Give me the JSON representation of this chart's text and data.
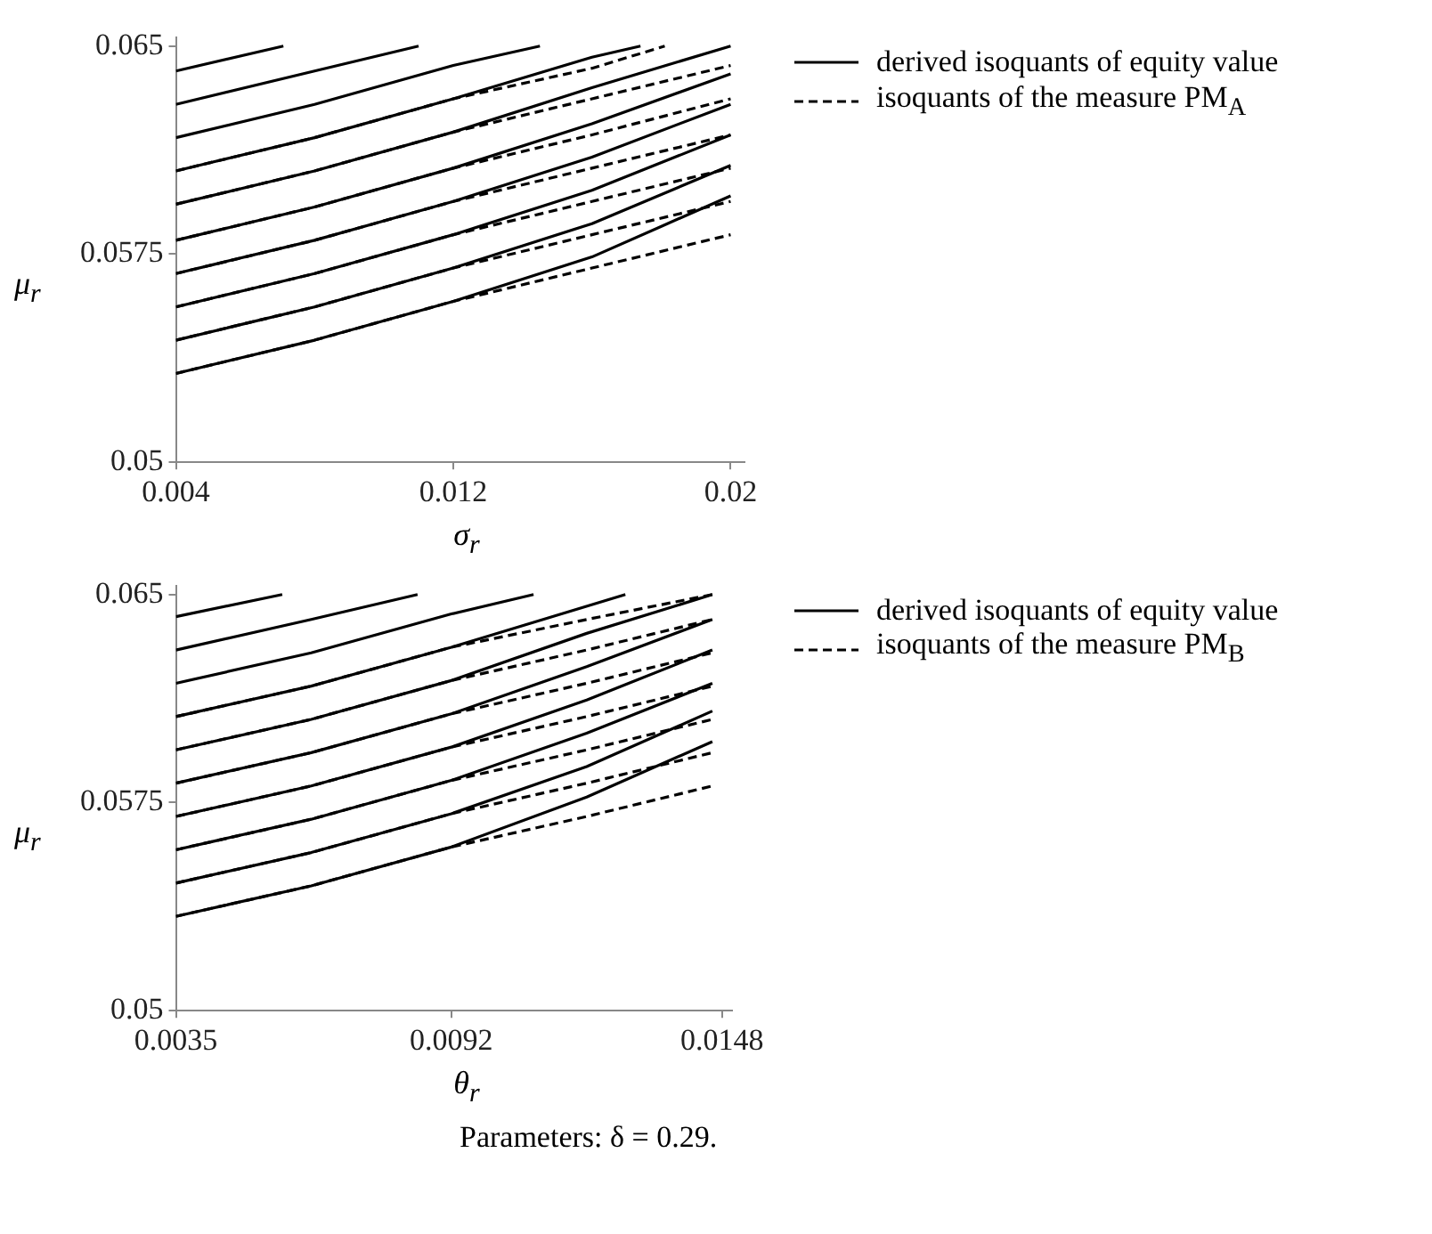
{
  "chart_data": [
    {
      "type": "line",
      "xlabel": "σ$_{r}$",
      "ylabel": "μ$_{r}$",
      "legend": "right",
      "xlim": [
        0.004,
        0.0204
      ],
      "xticks": [
        0.004,
        0.012,
        0.02
      ],
      "ylim": [
        0.05,
        0.0653
      ],
      "yticks": [
        0.05,
        0.0575,
        0.065
      ],
      "series": [
        {
          "name": "derived isoquants of equity value",
          "color": "#000000",
          "line_style": "solid",
          "x": [
            0.004,
            0.0071
          ],
          "values": [
            0.0641,
            0.065
          ]
        },
        {
          "color": "#000000",
          "line_style": "solid",
          "x": [
            0.004,
            0.008,
            0.011
          ],
          "values": [
            0.0629,
            0.0641,
            0.065
          ]
        },
        {
          "color": "#000000",
          "line_style": "solid",
          "x": [
            0.004,
            0.008,
            0.012,
            0.0145
          ],
          "values": [
            0.0617,
            0.0629,
            0.0643,
            0.065
          ]
        },
        {
          "color": "#000000",
          "line_style": "solid",
          "x": [
            0.004,
            0.008,
            0.012,
            0.016,
            0.0174
          ],
          "values": [
            0.0605,
            0.0617,
            0.0631,
            0.0646,
            0.065
          ]
        },
        {
          "color": "#000000",
          "line_style": "solid",
          "x": [
            0.004,
            0.008,
            0.012,
            0.016,
            0.02
          ],
          "values": [
            0.0593,
            0.0605,
            0.0619,
            0.0635,
            0.065
          ]
        },
        {
          "color": "#000000",
          "line_style": "solid",
          "x": [
            0.004,
            0.008,
            0.012,
            0.016,
            0.02
          ],
          "values": [
            0.058,
            0.0592,
            0.0606,
            0.0622,
            0.064
          ]
        },
        {
          "color": "#000000",
          "line_style": "solid",
          "x": [
            0.004,
            0.008,
            0.012,
            0.016,
            0.02
          ],
          "values": [
            0.0568,
            0.058,
            0.0594,
            0.061,
            0.0629
          ]
        },
        {
          "color": "#000000",
          "line_style": "solid",
          "x": [
            0.004,
            0.008,
            0.012,
            0.016,
            0.02
          ],
          "values": [
            0.0556,
            0.0568,
            0.0582,
            0.0598,
            0.0618
          ]
        },
        {
          "color": "#000000",
          "line_style": "solid",
          "x": [
            0.004,
            0.008,
            0.012,
            0.016,
            0.02
          ],
          "values": [
            0.0544,
            0.0556,
            0.057,
            0.0586,
            0.0607
          ]
        },
        {
          "color": "#000000",
          "line_style": "solid",
          "x": [
            0.004,
            0.008,
            0.012,
            0.016,
            0.02
          ],
          "values": [
            0.0532,
            0.0544,
            0.0558,
            0.0574,
            0.0596
          ]
        },
        {
          "name": "isoquants of the measure PM$_{A}$",
          "color": "#000000",
          "line_style": "dashed",
          "x": [
            0.004,
            0.008,
            0.012,
            0.016,
            0.0181
          ],
          "values": [
            0.0605,
            0.0617,
            0.0631,
            0.0642,
            0.065
          ]
        },
        {
          "color": "#000000",
          "line_style": "dashed",
          "x": [
            0.004,
            0.008,
            0.012,
            0.016,
            0.02
          ],
          "values": [
            0.0593,
            0.0605,
            0.0619,
            0.0631,
            0.0643
          ]
        },
        {
          "color": "#000000",
          "line_style": "dashed",
          "x": [
            0.004,
            0.008,
            0.012,
            0.016,
            0.02
          ],
          "values": [
            0.058,
            0.0592,
            0.0606,
            0.0618,
            0.0631
          ]
        },
        {
          "color": "#000000",
          "line_style": "dashed",
          "x": [
            0.004,
            0.008,
            0.012,
            0.016,
            0.02
          ],
          "values": [
            0.0568,
            0.058,
            0.0594,
            0.0606,
            0.0618
          ]
        },
        {
          "color": "#000000",
          "line_style": "dashed",
          "x": [
            0.004,
            0.008,
            0.012,
            0.016,
            0.02
          ],
          "values": [
            0.0556,
            0.0568,
            0.0582,
            0.0594,
            0.0606
          ]
        },
        {
          "color": "#000000",
          "line_style": "dashed",
          "x": [
            0.004,
            0.008,
            0.012,
            0.016,
            0.02
          ],
          "values": [
            0.0544,
            0.0556,
            0.057,
            0.0582,
            0.0594
          ]
        },
        {
          "color": "#000000",
          "line_style": "dashed",
          "x": [
            0.004,
            0.008,
            0.012,
            0.016,
            0.02
          ],
          "values": [
            0.0532,
            0.0544,
            0.0558,
            0.057,
            0.0582
          ]
        }
      ]
    },
    {
      "type": "line",
      "xlabel": "θ$_{r}$",
      "ylabel": "μ$_{r}$",
      "legend": "right",
      "xlim": [
        0.0035,
        0.015
      ],
      "xticks": [
        0.0035,
        0.0092,
        0.0148
      ],
      "ylim": [
        0.05,
        0.0653
      ],
      "yticks": [
        0.05,
        0.0575,
        0.065
      ],
      "annotations": [
        "Parameters: δ = 0.29."
      ],
      "series": [
        {
          "name": "derived isoquants of equity value",
          "color": "#000000",
          "line_style": "solid",
          "x": [
            0.0035,
            0.0057
          ],
          "values": [
            0.0642,
            0.065
          ]
        },
        {
          "color": "#000000",
          "line_style": "solid",
          "x": [
            0.0035,
            0.0063,
            0.0085
          ],
          "values": [
            0.063,
            0.0641,
            0.065
          ]
        },
        {
          "color": "#000000",
          "line_style": "solid",
          "x": [
            0.0035,
            0.0063,
            0.0092,
            0.0109
          ],
          "values": [
            0.0618,
            0.0629,
            0.0643,
            0.065
          ]
        },
        {
          "color": "#000000",
          "line_style": "solid",
          "x": [
            0.0035,
            0.0063,
            0.0092,
            0.0128
          ],
          "values": [
            0.0606,
            0.0617,
            0.0631,
            0.065
          ]
        },
        {
          "color": "#000000",
          "line_style": "solid",
          "x": [
            0.0035,
            0.0063,
            0.0092,
            0.012,
            0.0146
          ],
          "values": [
            0.0594,
            0.0605,
            0.0619,
            0.0636,
            0.065
          ]
        },
        {
          "color": "#000000",
          "line_style": "solid",
          "x": [
            0.0035,
            0.0063,
            0.0092,
            0.012,
            0.0146
          ],
          "values": [
            0.0582,
            0.0593,
            0.0607,
            0.0624,
            0.0641
          ]
        },
        {
          "color": "#000000",
          "line_style": "solid",
          "x": [
            0.0035,
            0.0063,
            0.0092,
            0.012,
            0.0146
          ],
          "values": [
            0.057,
            0.0581,
            0.0595,
            0.0612,
            0.063
          ]
        },
        {
          "color": "#000000",
          "line_style": "solid",
          "x": [
            0.0035,
            0.0063,
            0.0092,
            0.012,
            0.0146
          ],
          "values": [
            0.0558,
            0.0569,
            0.0583,
            0.06,
            0.0618
          ]
        },
        {
          "color": "#000000",
          "line_style": "solid",
          "x": [
            0.0035,
            0.0063,
            0.0092,
            0.012,
            0.0146
          ],
          "values": [
            0.0546,
            0.0557,
            0.0571,
            0.0588,
            0.0608
          ]
        },
        {
          "color": "#000000",
          "line_style": "solid",
          "x": [
            0.0035,
            0.0063,
            0.0092,
            0.012,
            0.0146
          ],
          "values": [
            0.0534,
            0.0545,
            0.0559,
            0.0577,
            0.0597
          ]
        },
        {
          "name": "isoquants of the measure PM$_{B}$",
          "color": "#000000",
          "line_style": "dashed",
          "x": [
            0.0035,
            0.0063,
            0.0092,
            0.012,
            0.0146
          ],
          "values": [
            0.0606,
            0.0617,
            0.0631,
            0.0641,
            0.065
          ]
        },
        {
          "color": "#000000",
          "line_style": "dashed",
          "x": [
            0.0035,
            0.0063,
            0.0092,
            0.012,
            0.0146
          ],
          "values": [
            0.0594,
            0.0605,
            0.0619,
            0.063,
            0.0641
          ]
        },
        {
          "color": "#000000",
          "line_style": "dashed",
          "x": [
            0.0035,
            0.0063,
            0.0092,
            0.012,
            0.0146
          ],
          "values": [
            0.0582,
            0.0593,
            0.0607,
            0.0618,
            0.0629
          ]
        },
        {
          "color": "#000000",
          "line_style": "dashed",
          "x": [
            0.0035,
            0.0063,
            0.0092,
            0.012,
            0.0146
          ],
          "values": [
            0.057,
            0.0581,
            0.0595,
            0.0606,
            0.0617
          ]
        },
        {
          "color": "#000000",
          "line_style": "dashed",
          "x": [
            0.0035,
            0.0063,
            0.0092,
            0.012,
            0.0146
          ],
          "values": [
            0.0558,
            0.0569,
            0.0583,
            0.0594,
            0.0605
          ]
        },
        {
          "color": "#000000",
          "line_style": "dashed",
          "x": [
            0.0035,
            0.0063,
            0.0092,
            0.012,
            0.0146
          ],
          "values": [
            0.0546,
            0.0557,
            0.0571,
            0.0582,
            0.0593
          ]
        },
        {
          "color": "#000000",
          "line_style": "dashed",
          "x": [
            0.0035,
            0.0063,
            0.0092,
            0.012,
            0.0146
          ],
          "values": [
            0.0534,
            0.0545,
            0.0559,
            0.057,
            0.0581
          ]
        }
      ]
    }
  ]
}
